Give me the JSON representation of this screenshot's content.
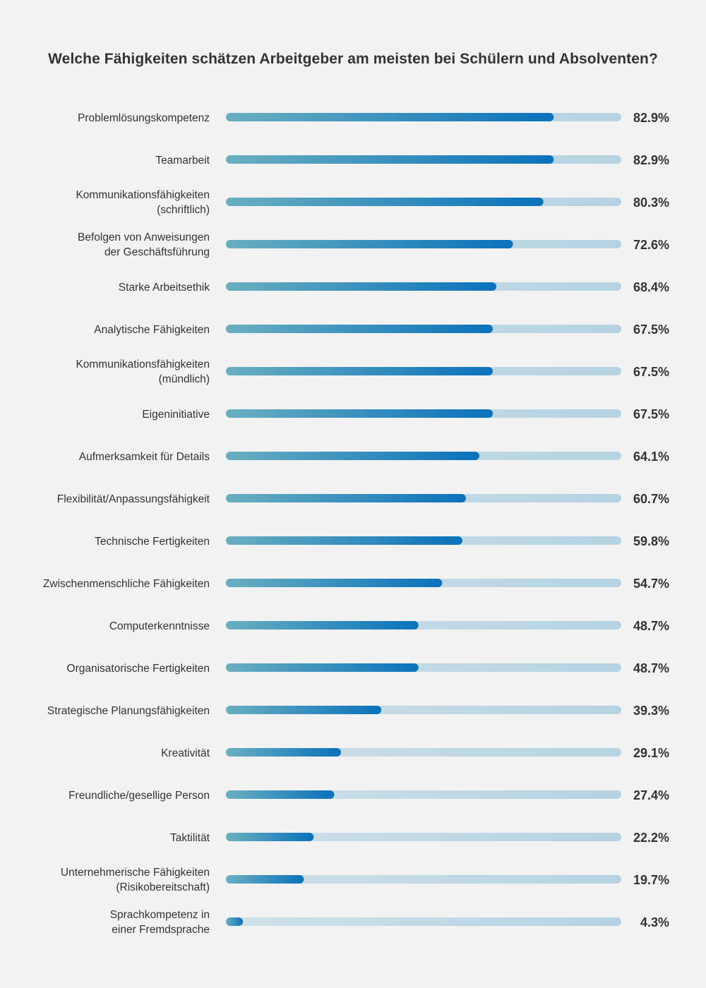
{
  "title": "Welche Fähigkeiten schätzen Arbeitgeber am meisten bei Schülern und Absolventen?",
  "colors": {
    "background": "#f2f2f2",
    "track_start": "#cfe1e8",
    "track_end": "#b5d2e3",
    "bar_start": "#6aafc0",
    "bar_end": "#0a72bb",
    "text": "#333333"
  },
  "chart_data": {
    "type": "bar",
    "orientation": "horizontal",
    "title": "Welche Fähigkeiten schätzen Arbeitgeber am meisten bei Schülern und Absolventen?",
    "unit": "%",
    "xlim": [
      0,
      100
    ],
    "grid": false,
    "categories": [
      [
        "Problemlösungskompetenz"
      ],
      [
        "Teamarbeit"
      ],
      [
        "Kommunikationsfähigkeiten",
        "(schriftlich)"
      ],
      [
        "Befolgen von Anweisungen",
        "der Geschäftsführung"
      ],
      [
        "Starke Arbeitsethik"
      ],
      [
        "Analytische Fähigkeiten"
      ],
      [
        "Kommunikationsfähigkeiten",
        "(mündlich)"
      ],
      [
        "Eigeninitiative"
      ],
      [
        "Aufmerksamkeit für Details"
      ],
      [
        "Flexibilität/Anpassungsfähigkeit"
      ],
      [
        "Technische Fertigkeiten"
      ],
      [
        "Zwischenmenschliche Fähigkeiten"
      ],
      [
        "Computerkenntnisse"
      ],
      [
        "Organisatorische Fertigkeiten"
      ],
      [
        "Strategische Planungsfähigkeiten"
      ],
      [
        "Kreativität"
      ],
      [
        "Freundliche/gesellige Person"
      ],
      [
        "Taktilität"
      ],
      [
        "Unternehmerische Fähigkeiten",
        "(Risikobereitschaft)"
      ],
      [
        "Sprachkompetenz in",
        "einer Fremdsprache"
      ]
    ],
    "values": [
      82.9,
      82.9,
      80.3,
      72.6,
      68.4,
      67.5,
      67.5,
      67.5,
      64.1,
      60.7,
      59.8,
      54.7,
      48.7,
      48.7,
      39.3,
      29.1,
      27.4,
      22.2,
      19.7,
      4.3
    ],
    "value_labels": [
      "82.9%",
      "82.9%",
      "80.3%",
      "72.6%",
      "68.4%",
      "67.5%",
      "67.5%",
      "67.5%",
      "64.1%",
      "60.7%",
      "59.8%",
      "54.7%",
      "48.7%",
      "48.7%",
      "39.3%",
      "29.1%",
      "27.4%",
      "22.2%",
      "19.7%",
      "4.3%"
    ]
  }
}
